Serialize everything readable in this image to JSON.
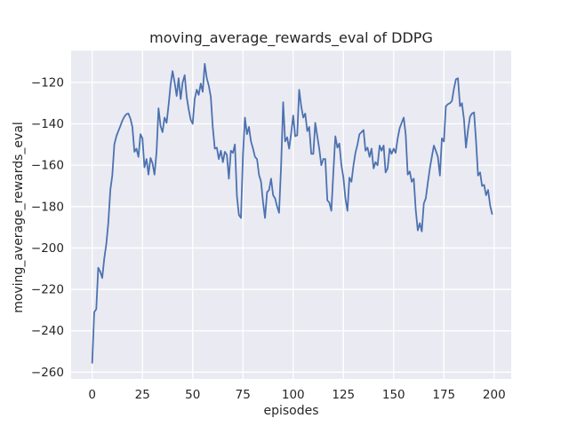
{
  "figure": {
    "background_color": "#ffffff",
    "axes_background_color": "#eaeaf2",
    "grid_color": "#ffffff",
    "text_color": "#262626"
  },
  "chart_data": {
    "type": "line",
    "title": "moving_average_rewards_eval of DDPG",
    "xlabel": "episodes",
    "ylabel": "moving_average_rewards_eval",
    "legend": null,
    "grid": true,
    "line_color": "#4C72B0",
    "line_width": 1.8,
    "x_ticks": [
      0,
      25,
      50,
      75,
      100,
      125,
      150,
      175,
      200
    ],
    "y_ticks": [
      -120,
      -140,
      -160,
      -180,
      -200,
      -220,
      -240,
      -260
    ],
    "xlim": [
      -10.5,
      208.5
    ],
    "ylim": [
      -263.3,
      -104.6
    ],
    "x_start": 0,
    "x_step": 1,
    "values": [
      -255.5,
      -231,
      -229.5,
      -209.5,
      -211.5,
      -214.5,
      -205,
      -198,
      -188,
      -172,
      -165,
      -150,
      -146,
      -143.5,
      -141,
      -138.5,
      -136.5,
      -135.3,
      -135,
      -137.5,
      -141.5,
      -153.5,
      -152,
      -156,
      -145,
      -147,
      -161,
      -157,
      -164.5,
      -156.5,
      -159,
      -164.5,
      -153.5,
      -132.5,
      -141,
      -144,
      -137,
      -139.5,
      -131,
      -121,
      -114.5,
      -120,
      -126.5,
      -118,
      -128,
      -120,
      -116.5,
      -127,
      -133,
      -138,
      -140,
      -128,
      -123.5,
      -126,
      -120.5,
      -124.5,
      -111,
      -118,
      -121.5,
      -127,
      -141.5,
      -152,
      -151.5,
      -157,
      -153,
      -158.5,
      -153.5,
      -155,
      -166.5,
      -153,
      -154,
      -150,
      -175,
      -184,
      -185.5,
      -155,
      -137,
      -145,
      -141.5,
      -148.5,
      -152,
      -156,
      -157,
      -164.5,
      -168,
      -178,
      -185.5,
      -173,
      -172,
      -166.5,
      -174.5,
      -176,
      -180,
      -183,
      -160,
      -129.5,
      -148.5,
      -146.5,
      -152,
      -144.5,
      -136,
      -146,
      -145.5,
      -123.5,
      -131.5,
      -137,
      -135,
      -143.5,
      -141.5,
      -154.5,
      -154.5,
      -139.5,
      -146,
      -152,
      -160,
      -157,
      -157,
      -177,
      -178,
      -182,
      -163,
      -146,
      -151.5,
      -149.5,
      -160,
      -166,
      -176,
      -182,
      -166,
      -168,
      -160,
      -154,
      -150,
      -145,
      -144,
      -143,
      -153,
      -151.5,
      -156,
      -152,
      -161.5,
      -158.5,
      -160,
      -150.5,
      -153,
      -150.5,
      -163.5,
      -161.5,
      -152,
      -154.5,
      -152,
      -154,
      -147,
      -142,
      -139.5,
      -137,
      -145,
      -164.5,
      -163,
      -168,
      -166.5,
      -181.5,
      -191.5,
      -188,
      -192,
      -178.5,
      -176,
      -168.5,
      -161.5,
      -156,
      -150.5,
      -153,
      -156,
      -165,
      -147,
      -148.5,
      -131.5,
      -130.5,
      -130,
      -129,
      -123,
      -118.5,
      -118,
      -131.5,
      -130,
      -138,
      -151.5,
      -143,
      -136.5,
      -135,
      -134.5,
      -148,
      -165,
      -163.5,
      -170,
      -169.5,
      -174.5,
      -172,
      -179.5,
      -183.5
    ]
  }
}
